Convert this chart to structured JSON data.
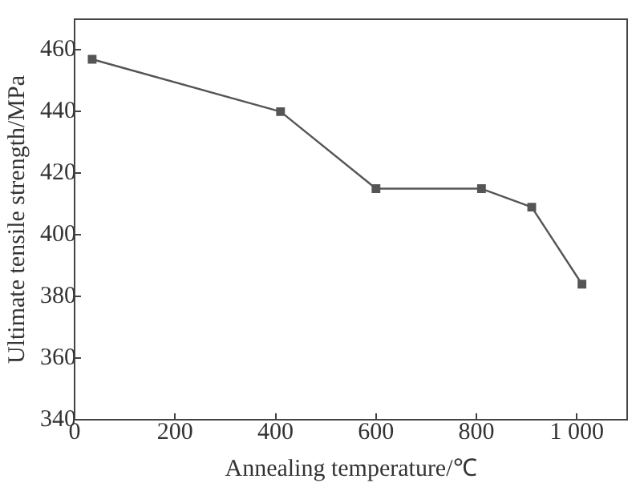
{
  "chart_data": {
    "type": "line",
    "xlabel": "Annealing temperature/℃",
    "ylabel": "Ultimate tensile strength/MPa",
    "x": [
      35,
      410,
      600,
      810,
      910,
      1010
    ],
    "series": [
      {
        "color": "#555555",
        "values": [
          457,
          440,
          415,
          415,
          409,
          384
        ]
      }
    ],
    "xlim": [
      0,
      1100
    ],
    "xticks": [
      0,
      200,
      400,
      600,
      800,
      {
        "value": 1000,
        "label": "1 000"
      }
    ],
    "ylim": [
      340,
      470
    ],
    "yticks": [
      340,
      360,
      380,
      400,
      420,
      440,
      460
    ],
    "grid": false,
    "legend": false,
    "marker": "square",
    "line_style": "solid"
  }
}
